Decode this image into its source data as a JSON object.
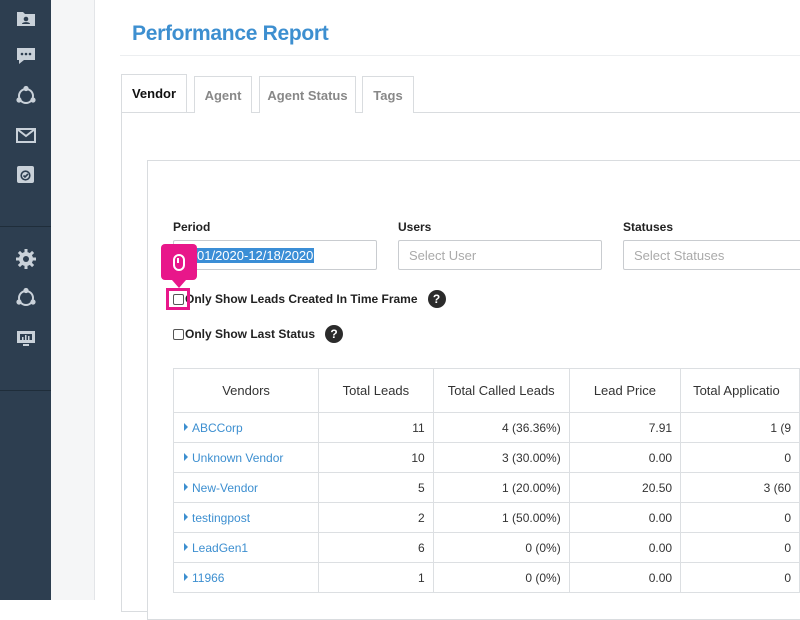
{
  "page": {
    "title": "Performance Report"
  },
  "tabs": [
    {
      "label": "Vendor",
      "active": true
    },
    {
      "label": "Agent",
      "active": false
    },
    {
      "label": "Agent Status",
      "active": false
    },
    {
      "label": "Tags",
      "active": false
    }
  ],
  "sidebar": {
    "icons": [
      "contacts-folder-icon",
      "chat-icon",
      "network-icon",
      "mail-icon",
      "task-check-icon",
      "settings-gear-icon",
      "integrations-network-icon",
      "reports-monitor-icon"
    ]
  },
  "filters": {
    "period": {
      "label": "Period",
      "value": "01/01/2020-12/18/2020",
      "visible_value": "01/2020-12/18/2020"
    },
    "users": {
      "label": "Users",
      "placeholder": "Select User"
    },
    "statuses": {
      "label": "Statuses",
      "placeholder": "Select Statuses"
    },
    "only_time_frame": {
      "label": "Only Show Leads Created In Time Frame",
      "checked": false
    },
    "only_last_status": {
      "label": "Only Show Last Status",
      "checked": false
    }
  },
  "table": {
    "headers": [
      "Vendors",
      "Total Leads",
      "Total Called Leads",
      "Lead Price",
      "Total Applicatio"
    ],
    "rows": [
      {
        "vendor": "ABCCorp",
        "total_leads": "11",
        "total_called": "4 (36.36%)",
        "lead_price": "7.91",
        "total_app": "1 (9"
      },
      {
        "vendor": "Unknown Vendor",
        "total_leads": "10",
        "total_called": "3 (30.00%)",
        "lead_price": "0.00",
        "total_app": "0"
      },
      {
        "vendor": "New-Vendor",
        "total_leads": "5",
        "total_called": "1 (20.00%)",
        "lead_price": "20.50",
        "total_app": "3 (60"
      },
      {
        "vendor": "testingpost",
        "total_leads": "2",
        "total_called": "1 (50.00%)",
        "lead_price": "0.00",
        "total_app": "0"
      },
      {
        "vendor": "LeadGen1",
        "total_leads": "6",
        "total_called": "0 (0%)",
        "lead_price": "0.00",
        "total_app": "0"
      },
      {
        "vendor": "11966",
        "total_leads": "1",
        "total_called": "0 (0%)",
        "lead_price": "0.00",
        "total_app": "0"
      }
    ]
  },
  "colors": {
    "sidebar": "#2d3e50",
    "accent": "#3d8fd0",
    "click_marker": "#e8178a"
  }
}
